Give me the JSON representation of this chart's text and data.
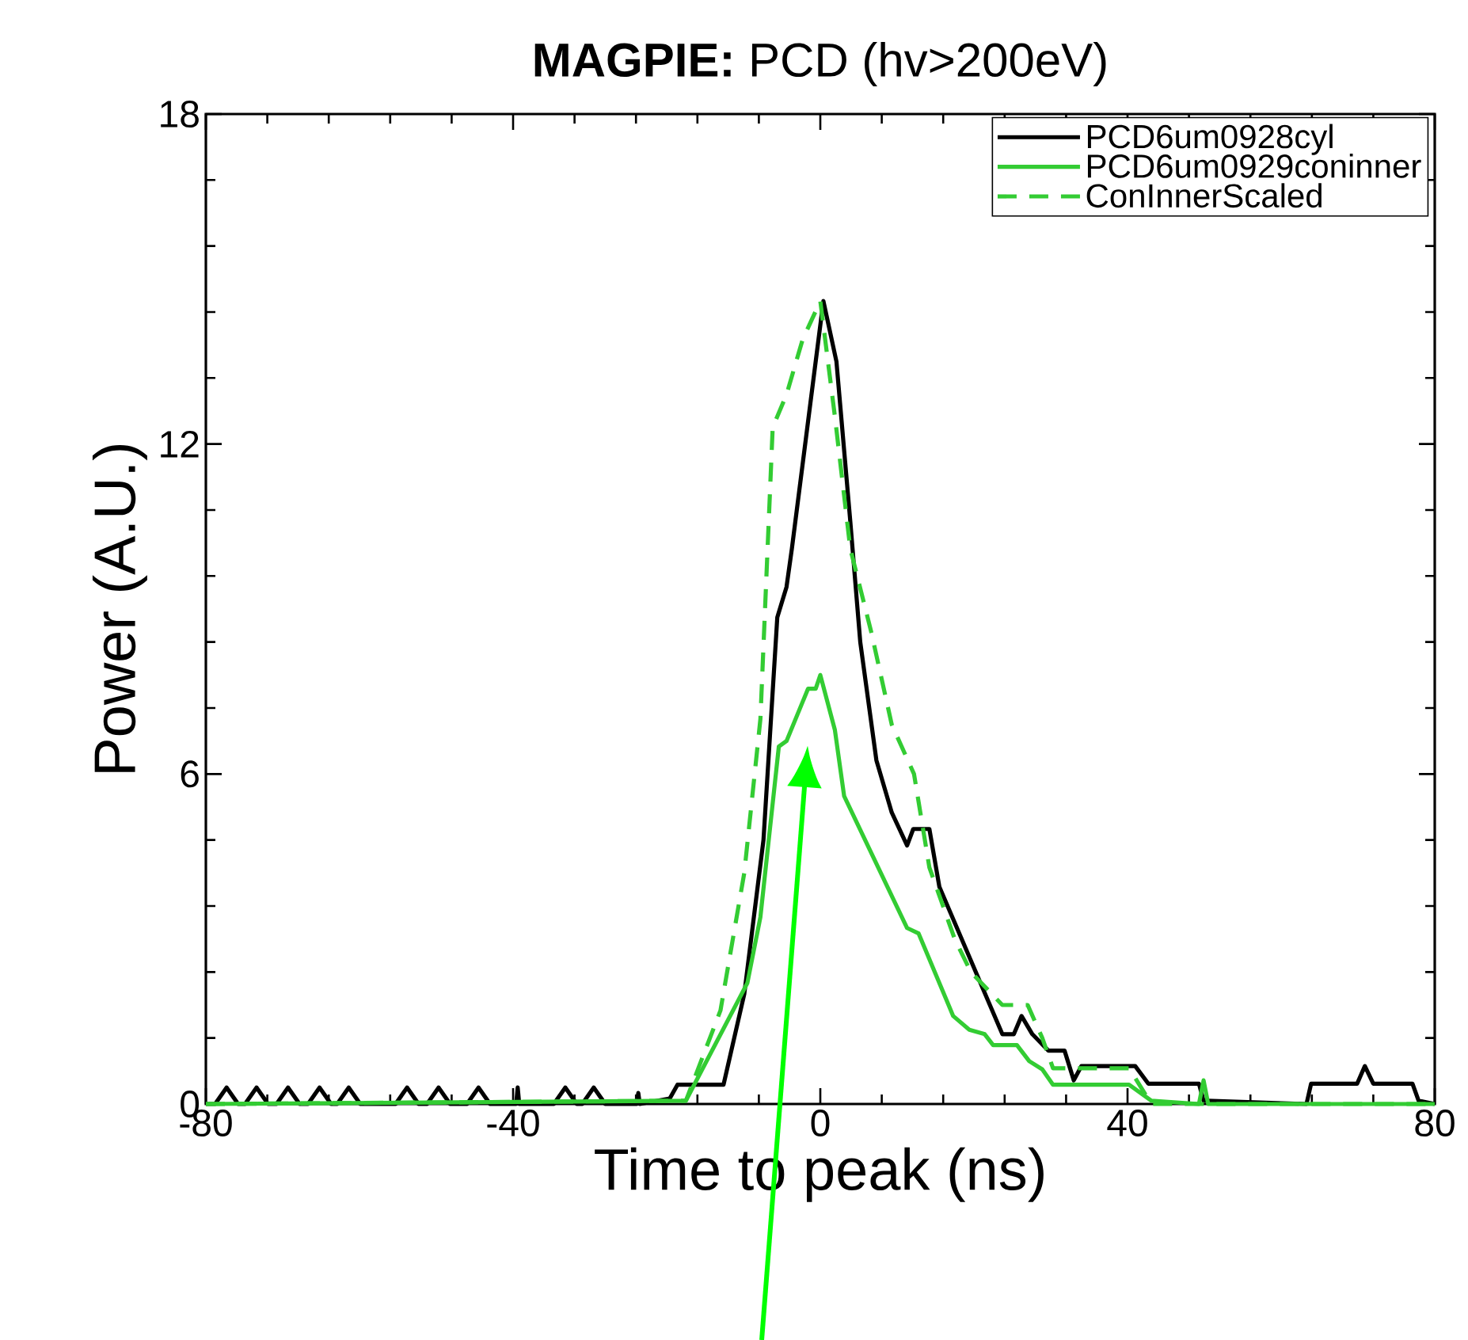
{
  "chart_data": {
    "type": "line",
    "title": "**MAGPIE:** PCD (hv>200eV)",
    "xlabel": "Time to peak (ns)",
    "ylabel": "Power (A.U.)",
    "xlim": [
      -80,
      80
    ],
    "ylim": [
      0,
      18
    ],
    "xticks": [
      -80,
      -40,
      0,
      40,
      80
    ],
    "yticks": [
      0,
      6,
      12,
      18
    ],
    "legend": "top right",
    "grid": false,
    "series": [
      {
        "name": "PCD6um0928cyl",
        "color": "#000000",
        "line_style": "solid",
        "x": [
          -80,
          -78.8,
          -77.3,
          -75.8,
          -74.9,
          -73.4,
          -71.9,
          -70.8,
          -69.3,
          -67.8,
          -66.7,
          -65.2,
          -63.7,
          -62.9,
          -61.4,
          -59.9,
          -55.3,
          -53.8,
          -52.3,
          -51.2,
          -49.7,
          -48.2,
          -46,
          -44.5,
          -43,
          -39.6,
          -39.4,
          -39.2,
          -34.7,
          -33.2,
          -31.7,
          -31,
          -29.5,
          -28,
          -23.9,
          -23.7,
          -23.5,
          -19.6,
          -18.6,
          -12.6,
          -9.9,
          -7.4,
          -5.6,
          -4.4,
          -3.7,
          0.4,
          2.1,
          3.9,
          5.2,
          7.3,
          9.3,
          11.3,
          12.1,
          14.2,
          15.5,
          23.7,
          25.2,
          26.2,
          27.6,
          29.7,
          31.8,
          33,
          34,
          41,
          42.7,
          49.3,
          49.9,
          63.3,
          63.9,
          69.9,
          70.9,
          72,
          77.1,
          77.9,
          80
        ],
        "values": [
          0,
          0,
          0.3,
          0,
          0,
          0.3,
          0,
          0,
          0.3,
          0,
          0,
          0.3,
          0,
          0,
          0.3,
          0,
          0,
          0.3,
          0,
          0,
          0.3,
          0,
          0,
          0.3,
          0,
          0,
          0.3,
          0,
          0,
          0.3,
          0,
          0,
          0.3,
          0,
          0,
          0.2,
          0,
          0.1,
          0.35,
          0.35,
          2.0,
          4.8,
          8.85,
          9.4,
          10.1,
          14.6,
          13.5,
          10.6,
          8.4,
          6.25,
          5.3,
          4.7,
          5.0,
          5.0,
          3.95,
          1.27,
          1.27,
          1.6,
          1.27,
          0.97,
          0.97,
          0.43,
          0.69,
          0.69,
          0.37,
          0.37,
          0.06,
          0,
          0.37,
          0.37,
          0.69,
          0.37,
          0.37,
          0.06,
          0
        ]
      },
      {
        "name": "PCD6um0929coninner",
        "color": "#33cc33",
        "line_style": "solid",
        "x": [
          -80,
          -17.5,
          -9.5,
          -7.8,
          -5.4,
          -4.4,
          -1.6,
          -0.6,
          0,
          1.9,
          3.1,
          11.3,
          12.8,
          17.3,
          19.4,
          21.4,
          22.5,
          25.6,
          27.2,
          28.9,
          30.3,
          40.2,
          43.1,
          49.3,
          49.9,
          50.5,
          80
        ],
        "values": [
          0,
          0.06,
          2.2,
          3.4,
          6.5,
          6.6,
          7.55,
          7.55,
          7.8,
          6.8,
          5.6,
          3.2,
          3.1,
          1.6,
          1.35,
          1.27,
          1.07,
          1.07,
          0.78,
          0.63,
          0.35,
          0.35,
          0.06,
          0,
          0.43,
          0,
          0
        ]
      },
      {
        "name": "ConInnerScaled",
        "color": "#33cc33",
        "line_style": "dashed",
        "x": [
          -80,
          -17.5,
          -13,
          -9.9,
          -7.8,
          -6.2,
          -4.4,
          -2.3,
          0,
          1.9,
          3.9,
          6.6,
          9.3,
          12.2,
          14.2,
          17.5,
          19.6,
          23.7,
          27,
          28.9,
          30.3,
          40.2,
          43.1,
          80
        ],
        "values": [
          0,
          0.06,
          1.7,
          4.2,
          7.0,
          12.3,
          12.9,
          13.9,
          14.6,
          12.5,
          10.1,
          8.6,
          6.9,
          6.0,
          4.3,
          3.0,
          2.4,
          1.8,
          1.8,
          1.2,
          0.65,
          0.65,
          0,
          0
        ]
      }
    ]
  }
}
